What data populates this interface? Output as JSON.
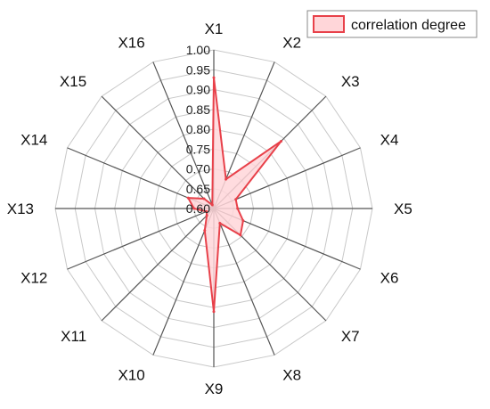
{
  "chart_data": {
    "type": "radar",
    "axes": [
      "X1",
      "X2",
      "X3",
      "X4",
      "X5",
      "X6",
      "X7",
      "X8",
      "X9",
      "X10",
      "X11",
      "X12",
      "X13",
      "X14",
      "X15",
      "X16"
    ],
    "series": [
      {
        "name": "correlation degree",
        "values": [
          0.93,
          0.68,
          0.84,
          0.66,
          0.66,
          0.68,
          0.695,
          0.64,
          0.86,
          0.66,
          0.625,
          0.62,
          0.65,
          0.67,
          0.635,
          0.61
        ],
        "fill": "#ffd6d9",
        "stroke": "#e8414a"
      }
    ],
    "rlim": [
      0.6,
      1.0
    ],
    "ticks": [
      0.6,
      0.65,
      0.7,
      0.75,
      0.8,
      0.85,
      0.9,
      0.95,
      1.0
    ],
    "tick_labels": [
      "0.60",
      "0.65",
      "0.70",
      "0.75",
      "0.80",
      "0.85",
      "0.90",
      "0.95",
      "1.00"
    ],
    "grid": true,
    "legend_position": "top-right",
    "colors": {
      "grid_ring": "#c8c8c8",
      "spoke": "#555555"
    }
  }
}
